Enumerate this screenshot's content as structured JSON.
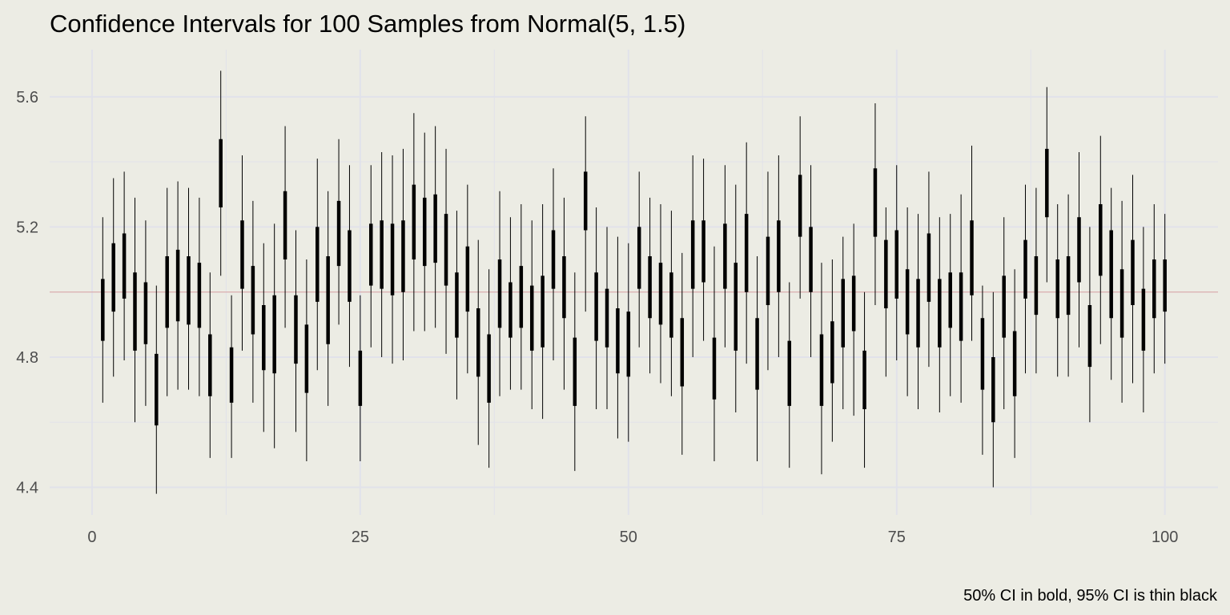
{
  "chart_data": {
    "type": "interval",
    "title": "Confidence Intervals for 100 Samples from Normal(5, 1.5)",
    "caption": "50% CI in bold, 95% CI is thin black",
    "xlabel": "",
    "ylabel": "",
    "xlim": [
      -3.95,
      104.95
    ],
    "ylim": [
      4.315,
      5.745
    ],
    "x_ticks": [
      0,
      25,
      50,
      75,
      100
    ],
    "x_tick_labels": [
      "0",
      "25",
      "50",
      "75",
      "100"
    ],
    "y_ticks": [
      4.4,
      4.8,
      5.2,
      5.6
    ],
    "y_tick_labels": [
      "4.4",
      "4.8",
      "5.2",
      "5.6"
    ],
    "grid": true,
    "reference_line": 5.0,
    "colors": {
      "background": "#ecece4",
      "grid": "#e1e2ea",
      "reference": "#d9a0a0",
      "interval": "#000000"
    },
    "interval_fields": [
      "lo95",
      "lo50",
      "hi50",
      "hi95"
    ],
    "intervals": [
      [
        4.66,
        4.85,
        5.04,
        5.23
      ],
      [
        4.74,
        4.94,
        5.15,
        5.35
      ],
      [
        4.79,
        4.98,
        5.18,
        5.37
      ],
      [
        4.6,
        4.82,
        5.06,
        5.29
      ],
      [
        4.65,
        4.84,
        5.03,
        5.22
      ],
      [
        4.38,
        4.59,
        4.81,
        5.02
      ],
      [
        4.68,
        4.89,
        5.11,
        5.32
      ],
      [
        4.7,
        4.91,
        5.13,
        5.34
      ],
      [
        4.7,
        4.9,
        5.11,
        5.32
      ],
      [
        4.68,
        4.89,
        5.09,
        5.29
      ],
      [
        4.49,
        4.68,
        4.87,
        5.06
      ],
      [
        5.05,
        5.26,
        5.47,
        5.68
      ],
      [
        4.49,
        4.66,
        4.83,
        4.99
      ],
      [
        4.82,
        5.01,
        5.22,
        5.42
      ],
      [
        4.66,
        4.87,
        5.08,
        5.28
      ],
      [
        4.57,
        4.76,
        4.96,
        5.15
      ],
      [
        4.52,
        4.75,
        4.99,
        5.21
      ],
      [
        4.89,
        5.1,
        5.31,
        5.51
      ],
      [
        4.57,
        4.78,
        4.99,
        5.19
      ],
      [
        4.48,
        4.69,
        4.9,
        5.1
      ],
      [
        4.76,
        4.97,
        5.2,
        5.41
      ],
      [
        4.65,
        4.84,
        5.11,
        5.31
      ],
      [
        4.9,
        5.08,
        5.28,
        5.47
      ],
      [
        4.77,
        4.97,
        5.19,
        5.39
      ],
      [
        4.48,
        4.65,
        4.82,
        4.99
      ],
      [
        4.83,
        5.02,
        5.21,
        5.39
      ],
      [
        4.8,
        5.01,
        5.22,
        5.43
      ],
      [
        4.78,
        4.99,
        5.21,
        5.42
      ],
      [
        4.79,
        5.0,
        5.22,
        5.44
      ],
      [
        4.88,
        5.1,
        5.33,
        5.55
      ],
      [
        4.88,
        5.08,
        5.29,
        5.49
      ],
      [
        4.89,
        5.09,
        5.3,
        5.51
      ],
      [
        4.81,
        5.02,
        5.24,
        5.44
      ],
      [
        4.67,
        4.86,
        5.06,
        5.25
      ],
      [
        4.75,
        4.94,
        5.14,
        5.33
      ],
      [
        4.53,
        4.74,
        4.95,
        5.16
      ],
      [
        4.46,
        4.66,
        4.87,
        5.07
      ],
      [
        4.68,
        4.89,
        5.1,
        5.31
      ],
      [
        4.7,
        4.86,
        5.03,
        5.23
      ],
      [
        4.7,
        4.89,
        5.08,
        5.27
      ],
      [
        4.64,
        4.82,
        5.02,
        5.22
      ],
      [
        4.61,
        4.83,
        5.05,
        5.27
      ],
      [
        4.79,
        5.01,
        5.19,
        5.38
      ],
      [
        4.7,
        4.92,
        5.11,
        5.29
      ],
      [
        4.45,
        4.65,
        4.86,
        5.06
      ],
      [
        4.94,
        5.19,
        5.37,
        5.54
      ],
      [
        4.64,
        4.85,
        5.06,
        5.26
      ],
      [
        4.64,
        4.83,
        5.01,
        5.2
      ],
      [
        4.55,
        4.75,
        4.95,
        5.17
      ],
      [
        4.54,
        4.74,
        4.94,
        5.15
      ],
      [
        4.83,
        5.01,
        5.2,
        5.37
      ],
      [
        4.75,
        4.92,
        5.11,
        5.29
      ],
      [
        4.72,
        4.9,
        5.09,
        5.27
      ],
      [
        4.68,
        4.86,
        5.06,
        5.25
      ],
      [
        4.5,
        4.71,
        4.92,
        5.12
      ],
      [
        4.8,
        5.01,
        5.22,
        5.42
      ],
      [
        4.85,
        5.03,
        5.22,
        5.41
      ],
      [
        4.48,
        4.67,
        4.86,
        5.14
      ],
      [
        4.83,
        5.01,
        5.21,
        5.39
      ],
      [
        4.63,
        4.82,
        5.09,
        5.33
      ],
      [
        4.78,
        5.0,
        5.24,
        5.46
      ],
      [
        4.48,
        4.7,
        4.92,
        5.11
      ],
      [
        4.76,
        4.96,
        5.17,
        5.37
      ],
      [
        4.8,
        5.0,
        5.22,
        5.42
      ],
      [
        4.46,
        4.65,
        4.85,
        5.03
      ],
      [
        4.98,
        5.17,
        5.36,
        5.54
      ],
      [
        4.8,
        5.0,
        5.2,
        5.39
      ],
      [
        4.44,
        4.65,
        4.87,
        5.09
      ],
      [
        4.54,
        4.72,
        4.91,
        5.1
      ],
      [
        4.64,
        4.83,
        5.04,
        5.17
      ],
      [
        4.62,
        4.88,
        5.05,
        5.21
      ],
      [
        4.46,
        4.64,
        4.82,
        5.0
      ],
      [
        4.96,
        5.17,
        5.38,
        5.58
      ],
      [
        4.74,
        4.95,
        5.16,
        5.26
      ],
      [
        4.79,
        4.98,
        5.19,
        5.39
      ],
      [
        4.68,
        4.87,
        5.07,
        5.26
      ],
      [
        4.64,
        4.83,
        5.04,
        5.24
      ],
      [
        4.77,
        4.97,
        5.18,
        5.37
      ],
      [
        4.63,
        4.83,
        5.04,
        5.23
      ],
      [
        4.68,
        4.89,
        5.06,
        5.24
      ],
      [
        4.66,
        4.85,
        5.06,
        5.3
      ],
      [
        4.85,
        4.99,
        5.22,
        5.45
      ],
      [
        4.5,
        4.7,
        4.92,
        5.02
      ],
      [
        4.4,
        4.6,
        4.8,
        5.0
      ],
      [
        4.64,
        4.86,
        5.05,
        5.23
      ],
      [
        4.49,
        4.68,
        4.88,
        5.07
      ],
      [
        4.75,
        4.98,
        5.16,
        5.33
      ],
      [
        4.75,
        4.93,
        5.11,
        5.32
      ],
      [
        5.03,
        5.23,
        5.44,
        5.63
      ],
      [
        4.74,
        4.92,
        5.1,
        5.27
      ],
      [
        4.74,
        4.93,
        5.11,
        5.3
      ],
      [
        4.83,
        5.03,
        5.23,
        5.43
      ],
      [
        4.6,
        4.77,
        4.96,
        5.2
      ],
      [
        4.84,
        5.05,
        5.27,
        5.48
      ],
      [
        4.73,
        4.92,
        5.19,
        5.32
      ],
      [
        4.66,
        4.86,
        5.07,
        5.28
      ],
      [
        4.72,
        4.96,
        5.16,
        5.36
      ],
      [
        4.63,
        4.82,
        5.01,
        5.2
      ],
      [
        4.75,
        4.92,
        5.1,
        5.27
      ],
      [
        4.78,
        4.94,
        5.1,
        5.24
      ]
    ]
  }
}
